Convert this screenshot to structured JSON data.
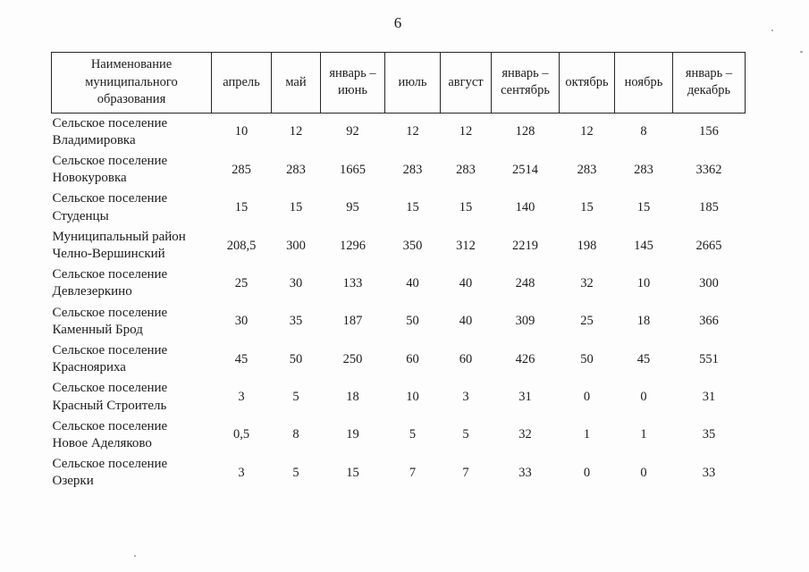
{
  "page": {
    "number": "6"
  },
  "table": {
    "header": {
      "name_column": "Наименование муниципального образования",
      "month_columns": [
        "апрель",
        "май",
        "январь – июнь",
        "июль",
        "август",
        "январь – сентябрь",
        "октябрь",
        "ноябрь",
        "январь – декабрь"
      ]
    },
    "rows": [
      {
        "name": "Сельское поселение Владимировка",
        "values": [
          "10",
          "12",
          "92",
          "12",
          "12",
          "128",
          "12",
          "8",
          "156"
        ]
      },
      {
        "name": "Сельское поселение Новокуровка",
        "values": [
          "285",
          "283",
          "1665",
          "283",
          "283",
          "2514",
          "283",
          "283",
          "3362"
        ]
      },
      {
        "name": "Сельское поселение Студенцы",
        "values": [
          "15",
          "15",
          "95",
          "15",
          "15",
          "140",
          "15",
          "15",
          "185"
        ]
      },
      {
        "name": "Муниципальный район Челно-Вершинский",
        "values": [
          "208,5",
          "300",
          "1296",
          "350",
          "312",
          "2219",
          "198",
          "145",
          "2665"
        ]
      },
      {
        "name": "Сельское поселение Девлезеркино",
        "values": [
          "25",
          "30",
          "133",
          "40",
          "40",
          "248",
          "32",
          "10",
          "300"
        ]
      },
      {
        "name": "Сельское поселение Каменный Брод",
        "values": [
          "30",
          "35",
          "187",
          "50",
          "40",
          "309",
          "25",
          "18",
          "366"
        ]
      },
      {
        "name": "Сельское поселение Краснояриха",
        "values": [
          "45",
          "50",
          "250",
          "60",
          "60",
          "426",
          "50",
          "45",
          "551"
        ]
      },
      {
        "name": "Сельское поселение Красный Строитель",
        "values": [
          "3",
          "5",
          "18",
          "10",
          "3",
          "31",
          "0",
          "0",
          "31"
        ]
      },
      {
        "name": "Сельское поселение Новое Аделяково",
        "values": [
          "0,5",
          "8",
          "19",
          "5",
          "5",
          "32",
          "1",
          "1",
          "35"
        ]
      },
      {
        "name": "Сельское поселение Озерки",
        "values": [
          "3",
          "5",
          "15",
          "7",
          "7",
          "33",
          "0",
          "0",
          "33"
        ]
      }
    ]
  },
  "colors": {
    "background": "#fdfdfd",
    "text": "#1c1c1c",
    "border": "#262626"
  }
}
